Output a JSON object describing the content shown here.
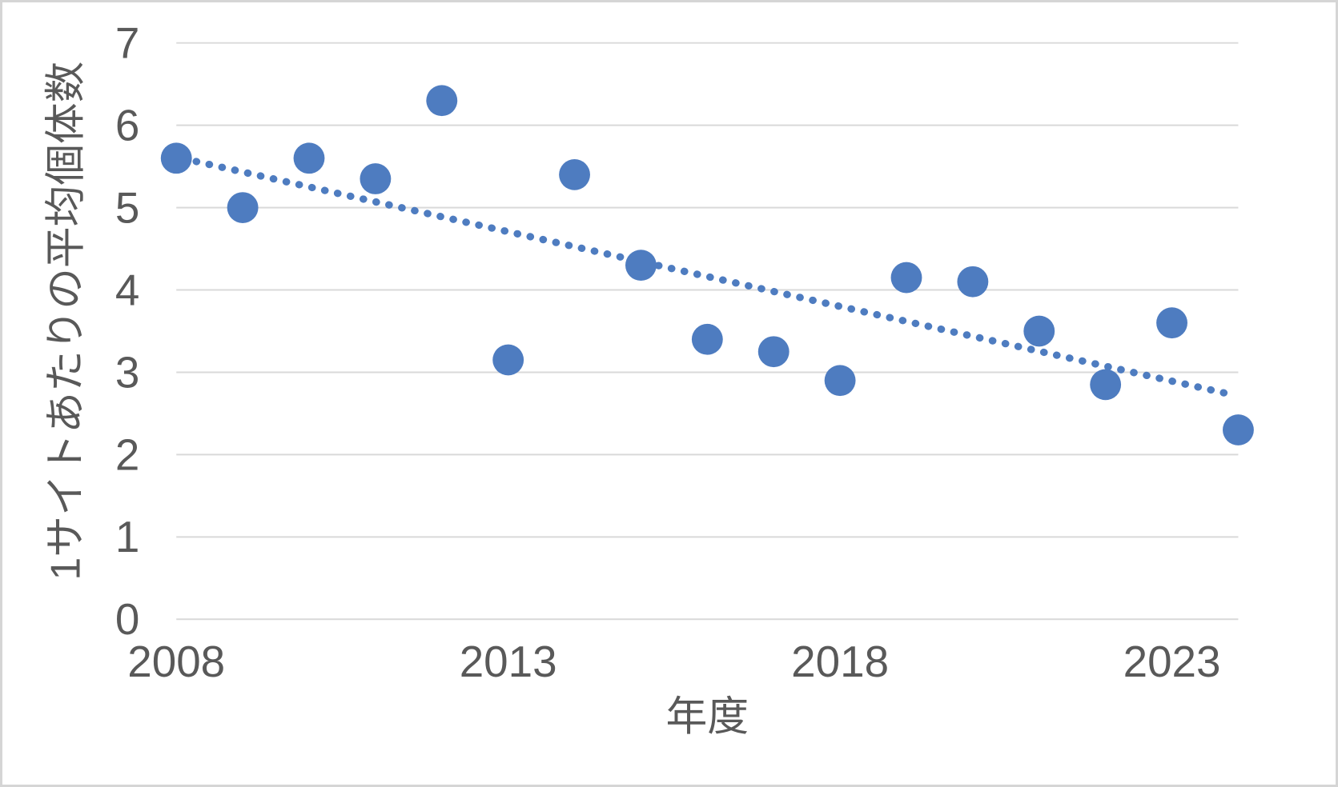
{
  "chart_data": {
    "type": "scatter",
    "title": "",
    "xlabel": "年度",
    "ylabel": "1サイトあたりの平均個体数",
    "xlim": [
      2008,
      2024
    ],
    "ylim": [
      0,
      7
    ],
    "x_tick_labels": [
      "2008",
      "2013",
      "2018",
      "2023"
    ],
    "x_tick_values": [
      2008,
      2013,
      2018,
      2023
    ],
    "y_tick_labels": [
      "0",
      "1",
      "2",
      "3",
      "4",
      "5",
      "6",
      "7"
    ],
    "y_tick_values": [
      0,
      1,
      2,
      3,
      4,
      5,
      6,
      7
    ],
    "grid": "horizontal-only",
    "legend": "none",
    "series": [
      {
        "name": "average-individuals-per-site",
        "type": "scatter",
        "points": [
          {
            "year": 2008,
            "value": 5.6
          },
          {
            "year": 2009,
            "value": 5.0
          },
          {
            "year": 2010,
            "value": 5.6
          },
          {
            "year": 2011,
            "value": 5.35
          },
          {
            "year": 2012,
            "value": 6.3
          },
          {
            "year": 2013,
            "value": 3.15
          },
          {
            "year": 2014,
            "value": 5.4
          },
          {
            "year": 2015,
            "value": 4.3
          },
          {
            "year": 2016,
            "value": 3.4
          },
          {
            "year": 2017,
            "value": 3.25
          },
          {
            "year": 2018,
            "value": 2.9
          },
          {
            "year": 2019,
            "value": 4.15
          },
          {
            "year": 2020,
            "value": 4.1
          },
          {
            "year": 2021,
            "value": 3.5
          },
          {
            "year": 2022,
            "value": 2.85
          },
          {
            "year": 2023,
            "value": 3.6
          },
          {
            "year": 2024,
            "value": 2.3
          }
        ]
      }
    ],
    "trendline": {
      "style": "dotted",
      "x1": 2008.3,
      "y1": 5.56,
      "x2": 2023.95,
      "y2": 2.72
    },
    "colors": {
      "marker": "#4e7cc0",
      "trendline": "#4e7cc0",
      "gridline": "#d9d9d9",
      "text": "#595959",
      "background": "#ffffff",
      "frame": "#d5d5d5"
    }
  }
}
